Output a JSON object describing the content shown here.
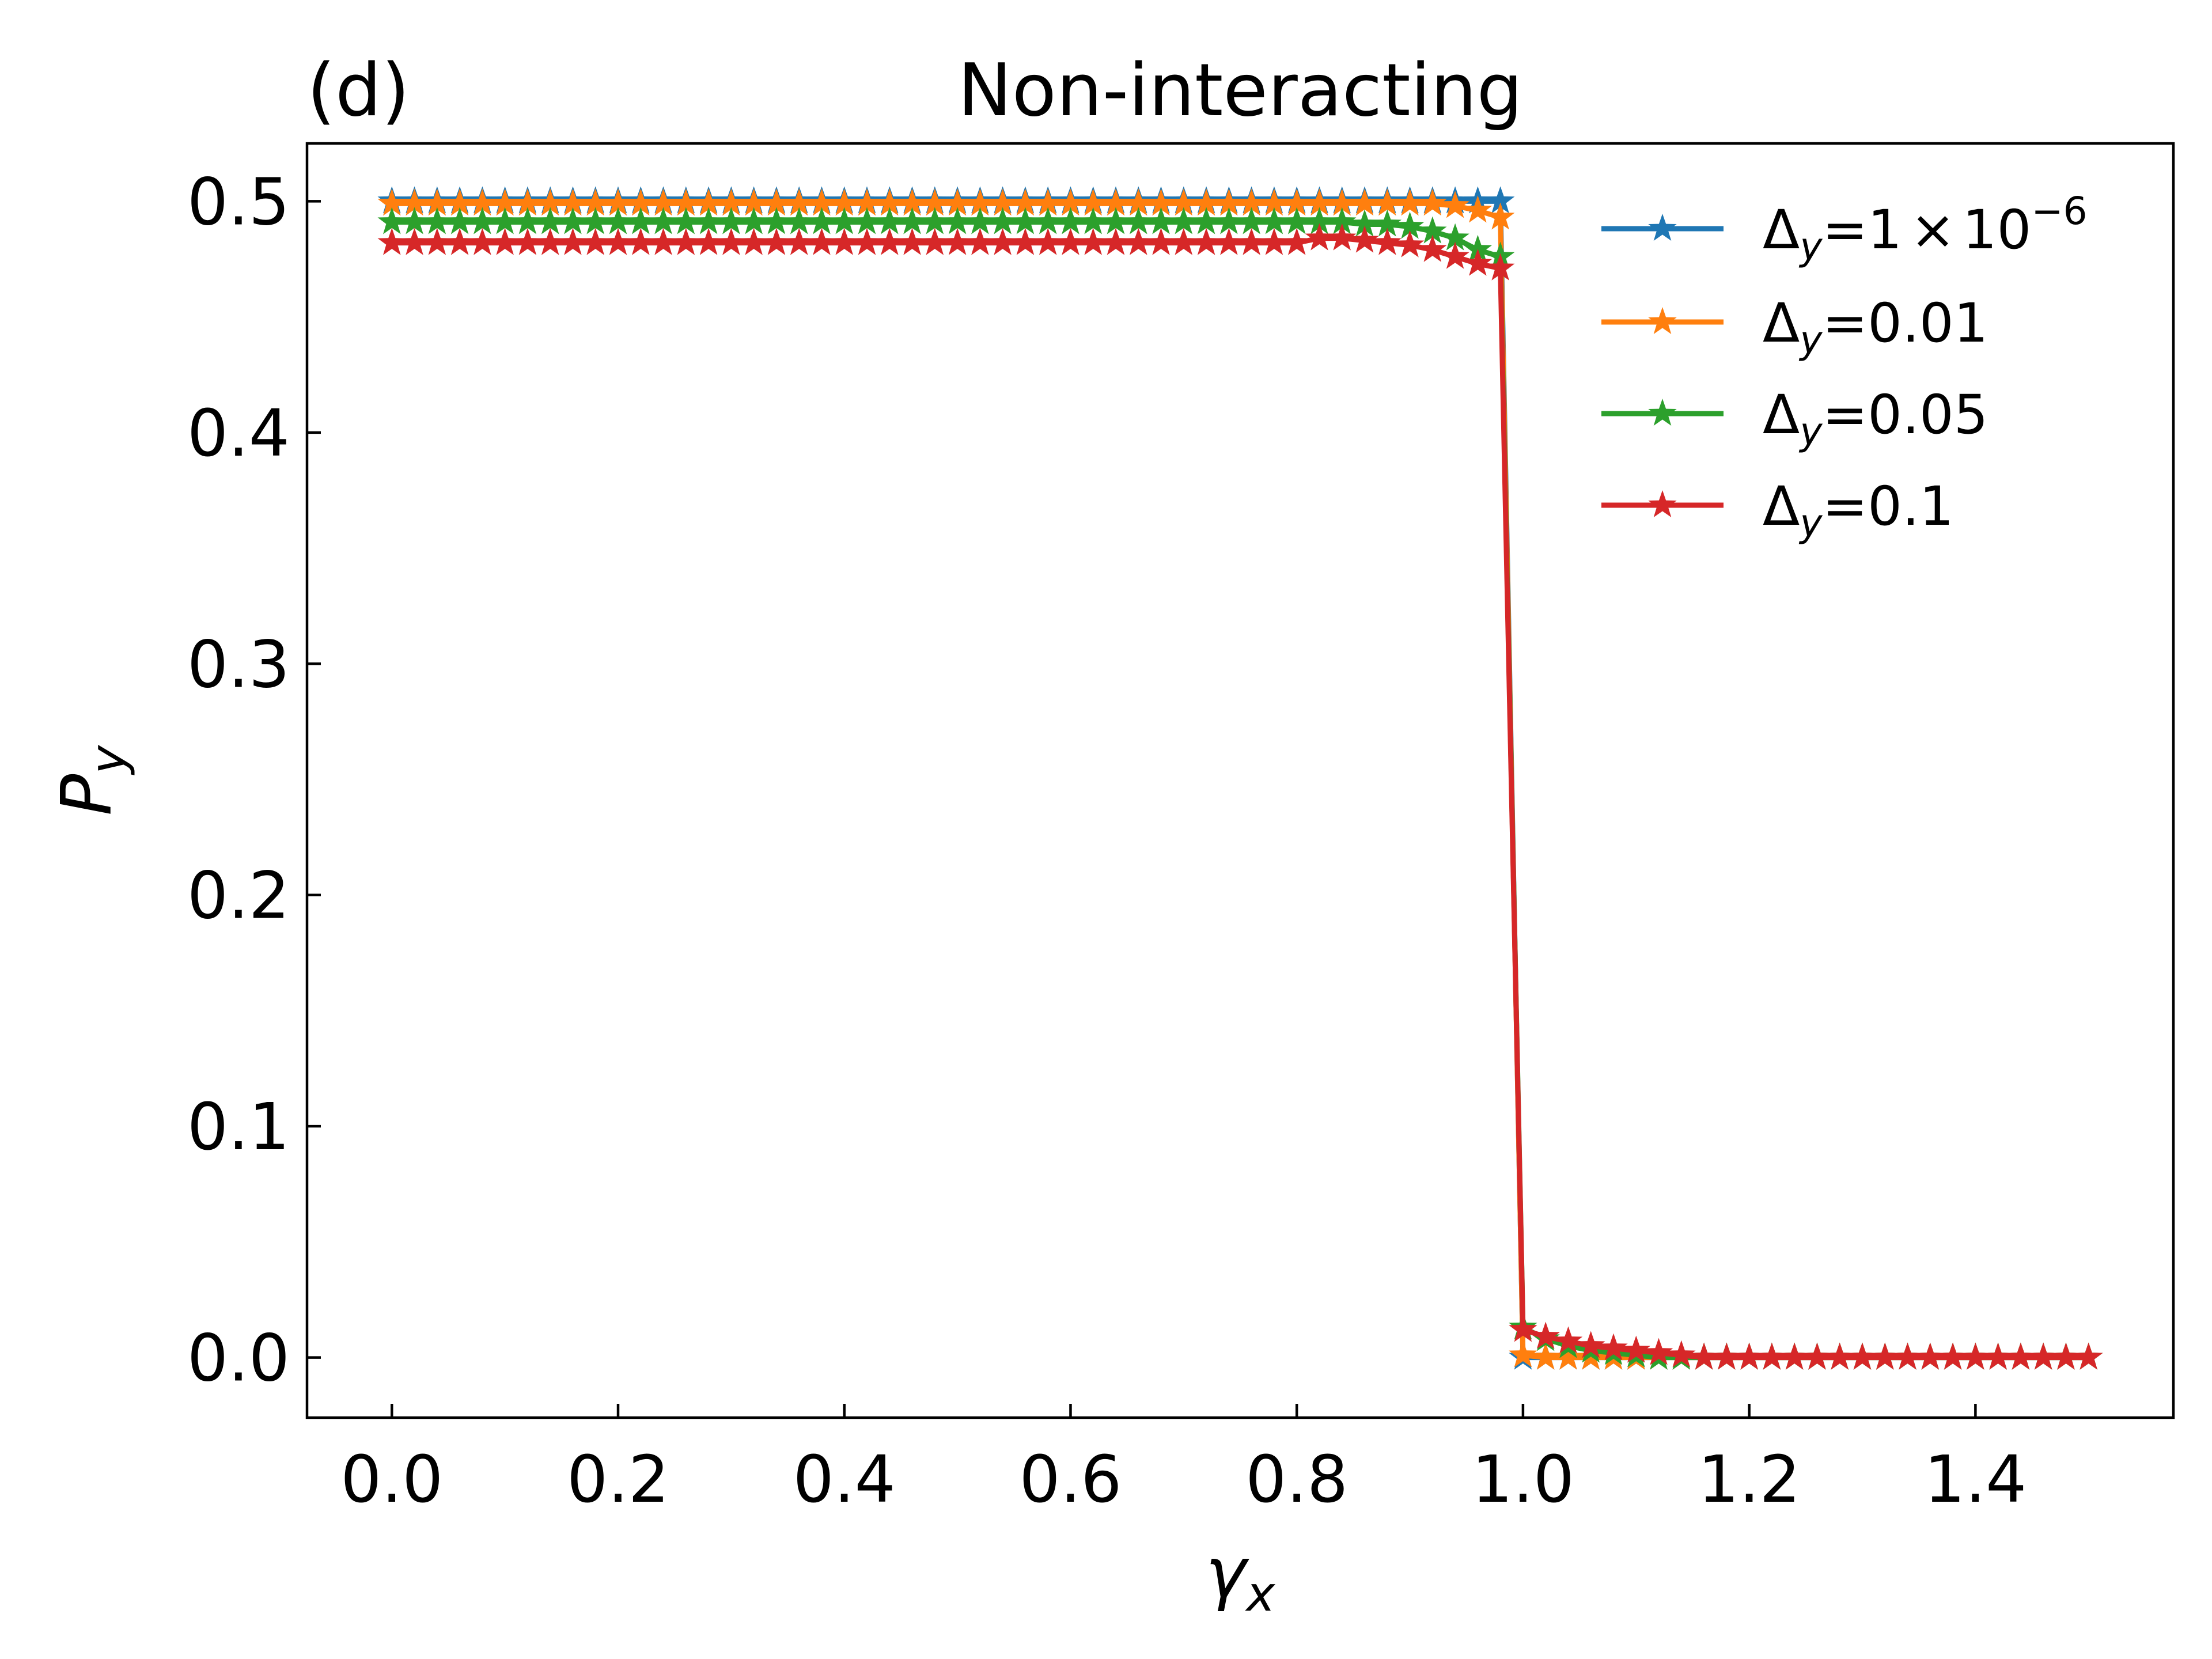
{
  "chart_data": {
    "type": "line",
    "panel_label": "(d)",
    "title": "Non-interacting",
    "xlabel": {
      "base": "γ",
      "sub": "x"
    },
    "ylabel": {
      "base": "P",
      "sub": "y"
    },
    "xlim": [
      -0.075,
      1.575
    ],
    "ylim": [
      -0.026,
      0.525
    ],
    "xticks": [
      0.0,
      0.2,
      0.4,
      0.6,
      0.8,
      1.0,
      1.2,
      1.4
    ],
    "xtick_labels": [
      "0.0",
      "0.2",
      "0.4",
      "0.6",
      "0.8",
      "1.0",
      "1.2",
      "1.4"
    ],
    "yticks": [
      0.0,
      0.1,
      0.2,
      0.3,
      0.4,
      0.5
    ],
    "ytick_labels": [
      "0.0",
      "0.1",
      "0.2",
      "0.3",
      "0.4",
      "0.5"
    ],
    "grid": false,
    "legend_position": "top-right",
    "marker": "star",
    "x_sampling": {
      "start": 0.0,
      "stop": 1.5,
      "step": 0.02
    },
    "series": [
      {
        "name": "Δy=1×10⁻⁶",
        "legend": {
          "base": "Δ",
          "sub": "y",
          "eq": "=1",
          "times": "×",
          "ten": "10",
          "exp": "−6"
        },
        "color": "#1f77b4",
        "plateau": 0.5,
        "plateau_drop": [],
        "tail": [
          0.0
        ]
      },
      {
        "name": "Δy=0.01",
        "legend": {
          "base": "Δ",
          "sub": "y",
          "eq": "=0.01"
        },
        "color": "#ff7f0e",
        "plateau": 0.499,
        "plateau_drop": [
          0.499,
          0.498,
          0.496,
          0.493
        ],
        "tail": [
          0.001,
          0.0
        ]
      },
      {
        "name": "Δy=0.05",
        "legend": {
          "base": "Δ",
          "sub": "y",
          "eq": "=0.05"
        },
        "color": "#2ca02c",
        "plateau": 0.491,
        "plateau_drop": [
          0.491,
          0.49,
          0.49,
          0.489,
          0.487,
          0.484,
          0.479,
          0.476
        ],
        "tail": [
          0.013,
          0.008,
          0.005,
          0.003,
          0.002,
          0.001,
          0.0
        ]
      },
      {
        "name": "Δy=0.1",
        "legend": {
          "base": "Δ",
          "sub": "y",
          "eq": "=0.1"
        },
        "color": "#d62728",
        "plateau": 0.482,
        "plateau_drop": [
          0.484,
          0.484,
          0.483,
          0.482,
          0.481,
          0.479,
          0.476,
          0.473,
          0.471
        ],
        "tail": [
          0.012,
          0.009,
          0.007,
          0.005,
          0.004,
          0.003,
          0.002,
          0.001,
          0.0
        ]
      }
    ]
  }
}
